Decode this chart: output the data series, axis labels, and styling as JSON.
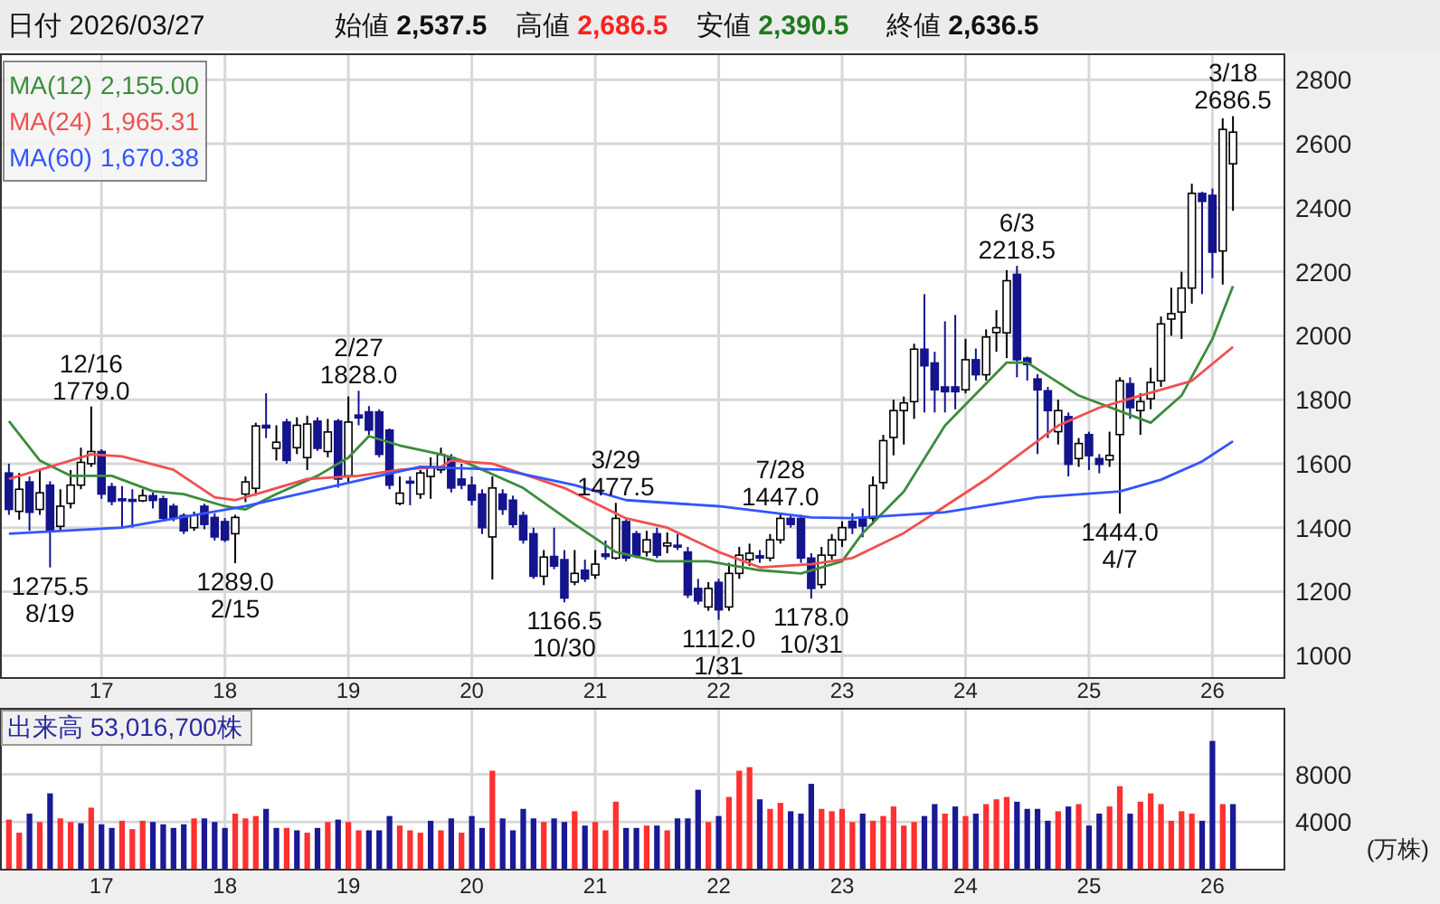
{
  "chart_data": [
    {
      "type": "candlestick",
      "title": "日付 2026/03/27",
      "x": [
        "2016-04",
        "2016-05",
        "2016-06",
        "2016-07",
        "2016-08",
        "2016-09",
        "2016-10",
        "2016-11",
        "2016-12",
        "2017-01",
        "2017-02",
        "2017-03",
        "2017-04",
        "2017-05",
        "2017-06",
        "2017-07",
        "2017-08",
        "2017-09",
        "2017-10",
        "2017-11",
        "2017-12",
        "2018-01",
        "2018-02",
        "2018-03",
        "2018-04",
        "2018-05",
        "2018-06",
        "2018-07",
        "2018-08",
        "2018-09",
        "2018-10",
        "2018-11",
        "2018-12",
        "2019-01",
        "2019-02",
        "2019-03",
        "2019-04",
        "2019-05",
        "2019-06",
        "2019-07",
        "2019-08",
        "2019-09",
        "2019-10",
        "2019-11",
        "2019-12",
        "2020-01",
        "2020-02",
        "2020-03",
        "2020-04",
        "2020-05",
        "2020-06",
        "2020-07",
        "2020-08",
        "2020-09",
        "2020-10",
        "2020-11",
        "2020-12",
        "2021-01",
        "2021-02",
        "2021-03",
        "2021-04",
        "2021-05",
        "2021-06",
        "2021-07",
        "2021-08",
        "2021-09",
        "2021-10",
        "2021-11",
        "2021-12",
        "2022-01",
        "2022-02",
        "2022-03",
        "2022-04",
        "2022-05",
        "2022-06",
        "2022-07",
        "2022-08",
        "2022-09",
        "2022-10",
        "2022-11",
        "2022-12",
        "2023-01",
        "2023-02",
        "2023-03",
        "2023-04",
        "2023-05",
        "2023-06",
        "2023-07",
        "2023-08",
        "2023-09",
        "2023-10",
        "2023-11",
        "2023-12",
        "2024-01",
        "2024-02",
        "2024-03",
        "2024-04",
        "2024-05",
        "2024-06",
        "2024-07",
        "2024-08",
        "2024-09",
        "2024-10",
        "2024-11",
        "2024-12",
        "2025-01",
        "2025-02",
        "2025-03",
        "2025-04",
        "2025-05",
        "2025-06",
        "2025-07",
        "2025-08",
        "2025-09",
        "2025-10",
        "2025-11",
        "2025-12",
        "2026-01",
        "2026-02",
        "2026-03"
      ],
      "ohlc": [
        [
          1571,
          1600,
          1440,
          1457
        ],
        [
          1451,
          1571,
          1425,
          1520
        ],
        [
          1543,
          1560,
          1390,
          1448
        ],
        [
          1457,
          1580,
          1440,
          1509
        ],
        [
          1533,
          1545,
          1275.5,
          1390
        ],
        [
          1404,
          1520,
          1390,
          1467
        ],
        [
          1476,
          1580,
          1460,
          1533
        ],
        [
          1533,
          1650,
          1520,
          1604
        ],
        [
          1600,
          1779,
          1590,
          1638
        ],
        [
          1638,
          1645,
          1490,
          1505
        ],
        [
          1528,
          1540,
          1470,
          1482
        ],
        [
          1490,
          1530,
          1400,
          1485
        ],
        [
          1488,
          1520,
          1400,
          1484
        ],
        [
          1484,
          1520,
          1480,
          1500
        ],
        [
          1500,
          1510,
          1460,
          1485
        ],
        [
          1490,
          1500,
          1420,
          1429
        ],
        [
          1467,
          1475,
          1420,
          1432
        ],
        [
          1438,
          1445,
          1380,
          1390
        ],
        [
          1400,
          1450,
          1390,
          1438
        ],
        [
          1467,
          1475,
          1395,
          1410
        ],
        [
          1432,
          1445,
          1360,
          1371
        ],
        [
          1419,
          1430,
          1355,
          1362
        ],
        [
          1381,
          1440,
          1289,
          1432
        ],
        [
          1505,
          1560,
          1480,
          1543
        ],
        [
          1523,
          1728,
          1500,
          1718
        ],
        [
          1720,
          1820,
          1680,
          1712
        ],
        [
          1648,
          1720,
          1610,
          1667
        ],
        [
          1730,
          1740,
          1600,
          1610
        ],
        [
          1650,
          1745,
          1630,
          1720
        ],
        [
          1619,
          1750,
          1580,
          1724
        ],
        [
          1733,
          1745,
          1640,
          1648
        ],
        [
          1638,
          1740,
          1620,
          1699
        ],
        [
          1733,
          1740,
          1525,
          1552
        ],
        [
          1562,
          1810,
          1540,
          1730
        ],
        [
          1752,
          1828,
          1720,
          1743
        ],
        [
          1762,
          1780,
          1690,
          1705
        ],
        [
          1762,
          1770,
          1620,
          1629
        ],
        [
          1705,
          1710,
          1520,
          1533
        ],
        [
          1476,
          1560,
          1470,
          1508
        ],
        [
          1545,
          1560,
          1470,
          1540
        ],
        [
          1505,
          1580,
          1490,
          1571
        ],
        [
          1560,
          1620,
          1490,
          1590
        ],
        [
          1581,
          1650,
          1570,
          1629
        ],
        [
          1619,
          1630,
          1510,
          1524
        ],
        [
          1552,
          1600,
          1520,
          1533
        ],
        [
          1533,
          1560,
          1470,
          1486
        ],
        [
          1505,
          1520,
          1380,
          1400
        ],
        [
          1371,
          1560,
          1238,
          1524
        ],
        [
          1505,
          1520,
          1440,
          1457
        ],
        [
          1486,
          1500,
          1400,
          1410
        ],
        [
          1438,
          1450,
          1350,
          1362
        ],
        [
          1381,
          1400,
          1240,
          1248
        ],
        [
          1248,
          1330,
          1220,
          1308
        ],
        [
          1310,
          1400,
          1270,
          1280
        ],
        [
          1300,
          1330,
          1166.5,
          1180
        ],
        [
          1230,
          1330,
          1220,
          1257
        ],
        [
          1267,
          1300,
          1230,
          1240
        ],
        [
          1252,
          1330,
          1240,
          1286
        ],
        [
          1318,
          1360,
          1300,
          1310
        ],
        [
          1305,
          1477.5,
          1300,
          1429
        ],
        [
          1419,
          1430,
          1295,
          1305
        ],
        [
          1381,
          1390,
          1305,
          1314
        ],
        [
          1324,
          1390,
          1310,
          1362
        ],
        [
          1381,
          1400,
          1305,
          1314
        ],
        [
          1343,
          1385,
          1320,
          1352
        ],
        [
          1345,
          1380,
          1330,
          1340
        ],
        [
          1324,
          1340,
          1180,
          1190
        ],
        [
          1210,
          1240,
          1160,
          1171
        ],
        [
          1152,
          1230,
          1140,
          1210
        ],
        [
          1229,
          1240,
          1112,
          1143
        ],
        [
          1152,
          1290,
          1140,
          1257
        ],
        [
          1257,
          1340,
          1240,
          1314
        ],
        [
          1300,
          1350,
          1280,
          1320
        ],
        [
          1312,
          1330,
          1290,
          1305
        ],
        [
          1305,
          1380,
          1295,
          1362
        ],
        [
          1362,
          1447,
          1350,
          1429
        ],
        [
          1429,
          1440,
          1400,
          1410
        ],
        [
          1429,
          1440,
          1290,
          1305
        ],
        [
          1305,
          1320,
          1178,
          1210
        ],
        [
          1222,
          1340,
          1210,
          1314
        ],
        [
          1314,
          1380,
          1300,
          1362
        ],
        [
          1362,
          1420,
          1340,
          1400
        ],
        [
          1420,
          1445,
          1380,
          1400
        ],
        [
          1430,
          1460,
          1370,
          1405
        ],
        [
          1429,
          1560,
          1410,
          1532
        ],
        [
          1541,
          1690,
          1520,
          1672
        ],
        [
          1682,
          1800,
          1626,
          1766
        ],
        [
          1766,
          1810,
          1660,
          1790
        ],
        [
          1794,
          1975,
          1740,
          1958
        ],
        [
          1958,
          2130,
          1760,
          1906
        ],
        [
          1915,
          1950,
          1760,
          1831
        ],
        [
          1840,
          2045,
          1760,
          1825
        ],
        [
          1840,
          2065,
          1770,
          1825
        ],
        [
          1831,
          1990,
          1820,
          1925
        ],
        [
          1925,
          1960,
          1860,
          1878
        ],
        [
          1878,
          2020,
          1860,
          1996
        ],
        [
          2010,
          2080,
          1950,
          2025
        ],
        [
          2009,
          2205,
          1930,
          2172
        ],
        [
          2192,
          2218.5,
          1870,
          1925
        ],
        [
          1930,
          1935,
          1860,
          1910
        ],
        [
          1865,
          1880,
          1630,
          1831
        ],
        [
          1828,
          1840,
          1680,
          1766
        ],
        [
          1700,
          1800,
          1660,
          1766
        ],
        [
          1747,
          1760,
          1560,
          1598
        ],
        [
          1616,
          1680,
          1590,
          1663
        ],
        [
          1691,
          1700,
          1580,
          1625
        ],
        [
          1616,
          1630,
          1570,
          1598
        ],
        [
          1612,
          1700,
          1590,
          1626
        ],
        [
          1691,
          1870,
          1444,
          1859
        ],
        [
          1850,
          1870,
          1740,
          1775
        ],
        [
          1766,
          1820,
          1690,
          1794
        ],
        [
          1803,
          1900,
          1770,
          1854
        ],
        [
          1859,
          2060,
          1840,
          2037
        ],
        [
          2052,
          2150,
          2000,
          2069
        ],
        [
          2074,
          2200,
          1990,
          2149
        ],
        [
          2149,
          2475,
          2100,
          2445
        ],
        [
          2445,
          2450,
          2130,
          2420
        ],
        [
          2439,
          2460,
          2180,
          2261
        ],
        [
          2265,
          2680,
          2160,
          2645
        ],
        [
          2537.5,
          2686.5,
          2390.5,
          2636.5
        ]
      ],
      "series": [
        {
          "type": "line",
          "name": "MA(12)",
          "color": "#3c8c3c",
          "x": [
            "2016-04",
            "2016-07",
            "2016-10",
            "2017-02",
            "2017-06",
            "2017-09",
            "2018-01",
            "2018-03",
            "2018-06",
            "2018-10",
            "2019-01",
            "2019-03",
            "2019-06",
            "2019-10",
            "2019-12",
            "2020-06",
            "2020-11",
            "2021-03",
            "2021-07",
            "2021-12",
            "2022-05",
            "2022-09",
            "2023-01",
            "2023-03",
            "2023-07",
            "2023-11",
            "2024-05",
            "2024-07",
            "2024-12",
            "2025-07",
            "2025-10",
            "2026-01",
            "2026-03"
          ],
          "values": [
            1733,
            1610,
            1562,
            1562,
            1514,
            1505,
            1467,
            1457,
            1505,
            1562,
            1619,
            1686,
            1657,
            1629,
            1610,
            1524,
            1410,
            1324,
            1295,
            1295,
            1267,
            1257,
            1295,
            1383,
            1513,
            1719,
            1916,
            1916,
            1813,
            1728,
            1813,
            1990,
            2155
          ]
        },
        {
          "type": "line",
          "name": "MA(24)",
          "color": "#f05050",
          "x": [
            "2016-04",
            "2016-12",
            "2017-03",
            "2017-08",
            "2017-12",
            "2018-02",
            "2018-05",
            "2018-09",
            "2019-02",
            "2019-06",
            "2019-10",
            "2019-11",
            "2020-03",
            "2020-10",
            "2021-04",
            "2021-08",
            "2022-01",
            "2022-05",
            "2022-10",
            "2023-02",
            "2023-07",
            "2024-03",
            "2024-10",
            "2025-02",
            "2025-06",
            "2025-11",
            "2026-03"
          ],
          "values": [
            1552,
            1629,
            1623,
            1581,
            1495,
            1486,
            1514,
            1552,
            1562,
            1581,
            1590,
            1610,
            1600,
            1524,
            1429,
            1400,
            1324,
            1276,
            1286,
            1305,
            1383,
            1551,
            1719,
            1775,
            1813,
            1859,
            1965
          ]
        },
        {
          "type": "line",
          "name": "MA(60)",
          "color": "#3355ff",
          "x": [
            "2016-04",
            "2017-03",
            "2018-03",
            "2019-04",
            "2019-08",
            "2020-04",
            "2020-11",
            "2021-04",
            "2022-01",
            "2022-10",
            "2023-02",
            "2023-11",
            "2024-08",
            "2025-04",
            "2025-08",
            "2025-12",
            "2026-03"
          ],
          "values": [
            1381,
            1400,
            1467,
            1562,
            1590,
            1581,
            1533,
            1486,
            1467,
            1432,
            1430,
            1448,
            1495,
            1513,
            1550,
            1607,
            1670
          ]
        }
      ],
      "xlim": [
        "2016-03-05",
        "2026-08-01"
      ],
      "xticks": [
        {
          "value": "2017-01-01",
          "label": "17"
        },
        {
          "value": "2018-01-01",
          "label": "18"
        },
        {
          "value": "2019-01-01",
          "label": "19"
        },
        {
          "value": "2020-01-01",
          "label": "20"
        },
        {
          "value": "2021-01-01",
          "label": "21"
        },
        {
          "value": "2022-01-01",
          "label": "22"
        },
        {
          "value": "2023-01-01",
          "label": "23"
        },
        {
          "value": "2024-01-01",
          "label": "24"
        },
        {
          "value": "2025-01-01",
          "label": "25"
        },
        {
          "value": "2026-01-01",
          "label": "26"
        }
      ],
      "ylim": [
        930,
        2880
      ],
      "yticks": [
        1000,
        1200,
        1400,
        1600,
        1800,
        2000,
        2200,
        2400,
        2600,
        2800
      ],
      "grid": true,
      "legend": "top left",
      "annotations": [
        {
          "text": "12/16\n1779.0",
          "x": "2016-12",
          "y": 1779
        },
        {
          "text": "1275.5\n8/19",
          "x": "2016-08",
          "y": 1275.5
        },
        {
          "text": "2/27\n1828.0",
          "x": "2019-02",
          "y": 1828
        },
        {
          "text": "1289.0\n2/15",
          "x": "2018-02",
          "y": 1289
        },
        {
          "text": "3/29\n1477.5",
          "x": "2021-03",
          "y": 1477.5
        },
        {
          "text": "1166.5\n10/30",
          "x": "2020-10",
          "y": 1166.5
        },
        {
          "text": "7/28\n1447.0",
          "x": "2022-07",
          "y": 1447
        },
        {
          "text": "1112.0\n1/31",
          "x": "2022-01",
          "y": 1112
        },
        {
          "text": "1178.0\n10/31",
          "x": "2022-10",
          "y": 1178
        },
        {
          "text": "6/3\n2218.5",
          "x": "2024-06",
          "y": 2218.5
        },
        {
          "text": "1444.0\n4/7",
          "x": "2025-04",
          "y": 1444
        },
        {
          "text": "3/18\n2686.5",
          "x": "2026-03",
          "y": 2686.5
        },
        "始値 2,537.5",
        "高値 2,686.5",
        "安値 2,390.5",
        "終値 2,636.5",
        "2,155.00",
        "1,965.31",
        "1,670.38"
      ]
    },
    {
      "type": "bar",
      "x": [
        "2016-04",
        "2016-05",
        "2016-06",
        "2016-07",
        "2016-08",
        "2016-09",
        "2016-10",
        "2016-11",
        "2016-12",
        "2017-01",
        "2017-02",
        "2017-03",
        "2017-04",
        "2017-05",
        "2017-06",
        "2017-07",
        "2017-08",
        "2017-09",
        "2017-10",
        "2017-11",
        "2017-12",
        "2018-01",
        "2018-02",
        "2018-03",
        "2018-04",
        "2018-05",
        "2018-06",
        "2018-07",
        "2018-08",
        "2018-09",
        "2018-10",
        "2018-11",
        "2018-12",
        "2019-01",
        "2019-02",
        "2019-03",
        "2019-04",
        "2019-05",
        "2019-06",
        "2019-07",
        "2019-08",
        "2019-09",
        "2019-10",
        "2019-11",
        "2019-12",
        "2020-01",
        "2020-02",
        "2020-03",
        "2020-04",
        "2020-05",
        "2020-06",
        "2020-07",
        "2020-08",
        "2020-09",
        "2020-10",
        "2020-11",
        "2020-12",
        "2021-01",
        "2021-02",
        "2021-03",
        "2021-04",
        "2021-05",
        "2021-06",
        "2021-07",
        "2021-08",
        "2021-09",
        "2021-10",
        "2021-11",
        "2021-12",
        "2022-01",
        "2022-02",
        "2022-03",
        "2022-04",
        "2022-05",
        "2022-06",
        "2022-07",
        "2022-08",
        "2022-09",
        "2022-10",
        "2022-11",
        "2022-12",
        "2023-01",
        "2023-02",
        "2023-03",
        "2023-04",
        "2023-05",
        "2023-06",
        "2023-07",
        "2023-08",
        "2023-09",
        "2023-10",
        "2023-11",
        "2023-12",
        "2024-01",
        "2024-02",
        "2024-03",
        "2024-04",
        "2024-05",
        "2024-06",
        "2024-07",
        "2024-08",
        "2024-09",
        "2024-10",
        "2024-11",
        "2024-12",
        "2025-01",
        "2025-02",
        "2025-03",
        "2025-04",
        "2025-05",
        "2025-06",
        "2025-07",
        "2025-08",
        "2025-09",
        "2025-10",
        "2025-11",
        "2025-12",
        "2026-01",
        "2026-02",
        "2026-03"
      ],
      "values": [
        4200,
        3100,
        4700,
        4000,
        6400,
        4300,
        4000,
        3900,
        5200,
        3800,
        3500,
        4100,
        3400,
        4100,
        4000,
        3800,
        3500,
        3800,
        4300,
        4300,
        4000,
        3500,
        4700,
        4300,
        4500,
        5100,
        3500,
        3500,
        3300,
        3100,
        3500,
        4000,
        4200,
        4000,
        3300,
        3300,
        3300,
        4500,
        3700,
        3300,
        3100,
        4100,
        3300,
        4300,
        3100,
        4500,
        3500,
        8300,
        4300,
        3300,
        5100,
        4300,
        4000,
        4300,
        4000,
        4900,
        3700,
        4000,
        3300,
        5700,
        3500,
        3500,
        3700,
        3700,
        3300,
        4300,
        4300,
        6700,
        4000,
        4500,
        6100,
        8300,
        8600,
        5900,
        5100,
        5600,
        4900,
        4700,
        7200,
        5100,
        4900,
        5100,
        4000,
        4700,
        4100,
        4500,
        5300,
        3700,
        4000,
        4500,
        5500,
        4700,
        5300,
        4500,
        4700,
        5500,
        5900,
        6100,
        5700,
        5100,
        5100,
        4100,
        4900,
        5300,
        5500,
        3700,
        4700,
        5300,
        7000,
        4700,
        5700,
        6400,
        5500,
        4100,
        4900,
        4700,
        4100,
        10800,
        5500,
        5500
      ],
      "colors": [
        "#ff3030",
        "#ff3030",
        "#1a1a96",
        "#ff3030",
        "#1a1a96",
        "#ff3030",
        "#ff3030",
        "#1a1a96",
        "#ff3030",
        "#1a1a96",
        "#1a1a96",
        "#ff3030",
        "#ff3030",
        "#ff3030",
        "#1a1a96",
        "#1a1a96",
        "#1a1a96",
        "#1a1a96",
        "#ff3030",
        "#1a1a96",
        "#1a1a96",
        "#1a1a96",
        "#ff3030",
        "#ff3030",
        "#ff3030",
        "#1a1a96",
        "#1a1a96",
        "#ff3030",
        "#1a1a96",
        "#ff3030",
        "#1a1a96",
        "#ff3030",
        "#1a1a96",
        "#ff3030",
        "#ff3030",
        "#1a1a96",
        "#1a1a96",
        "#1a1a96",
        "#ff3030",
        "#ff3030",
        "#ff3030",
        "#1a1a96",
        "#ff3030",
        "#1a1a96",
        "#ff3030",
        "#1a1a96",
        "#1a1a96",
        "#ff3030",
        "#1a1a96",
        "#1a1a96",
        "#1a1a96",
        "#1a1a96",
        "#ff3030",
        "#1a1a96",
        "#1a1a96",
        "#ff3030",
        "#1a1a96",
        "#ff3030",
        "#ff3030",
        "#ff3030",
        "#1a1a96",
        "#1a1a96",
        "#ff3030",
        "#1a1a96",
        "#ff3030",
        "#1a1a96",
        "#1a1a96",
        "#1a1a96",
        "#ff3030",
        "#1a1a96",
        "#ff3030",
        "#ff3030",
        "#ff3030",
        "#1a1a96",
        "#ff3030",
        "#ff3030",
        "#1a1a96",
        "#1a1a96",
        "#1a1a96",
        "#ff3030",
        "#ff3030",
        "#ff3030",
        "#ff3030",
        "#1a1a96",
        "#ff3030",
        "#ff3030",
        "#ff3030",
        "#ff3030",
        "#ff3030",
        "#1a1a96",
        "#1a1a96",
        "#ff3030",
        "#1a1a96",
        "#ff3030",
        "#1a1a96",
        "#ff3030",
        "#ff3030",
        "#ff3030",
        "#1a1a96",
        "#1a1a96",
        "#1a1a96",
        "#1a1a96",
        "#ff3030",
        "#1a1a96",
        "#ff3030",
        "#1a1a96",
        "#1a1a96",
        "#ff3030",
        "#ff3030",
        "#1a1a96",
        "#ff3030",
        "#ff3030",
        "#ff3030",
        "#ff3030",
        "#ff3030",
        "#ff3030",
        "#1a1a96",
        "#1a1a96",
        "#ff3030",
        "#1a1a96"
      ],
      "xlim": [
        "2016-03-05",
        "2026-08-01"
      ],
      "xticks": [
        {
          "value": "2017-01-01",
          "label": "17"
        },
        {
          "value": "2018-01-01",
          "label": "18"
        },
        {
          "value": "2019-01-01",
          "label": "19"
        },
        {
          "value": "2020-01-01",
          "label": "20"
        },
        {
          "value": "2021-01-01",
          "label": "21"
        },
        {
          "value": "2022-01-01",
          "label": "22"
        },
        {
          "value": "2023-01-01",
          "label": "23"
        },
        {
          "value": "2024-01-01",
          "label": "24"
        },
        {
          "value": "2025-01-01",
          "label": "25"
        },
        {
          "value": "2026-01-01",
          "label": "26"
        }
      ],
      "ylim": [
        0,
        13500
      ],
      "yticks": [
        4000,
        8000
      ],
      "ylabel": "(万株)",
      "grid": true,
      "annotations": [
        "出来高 53,016,700株"
      ]
    }
  ]
}
